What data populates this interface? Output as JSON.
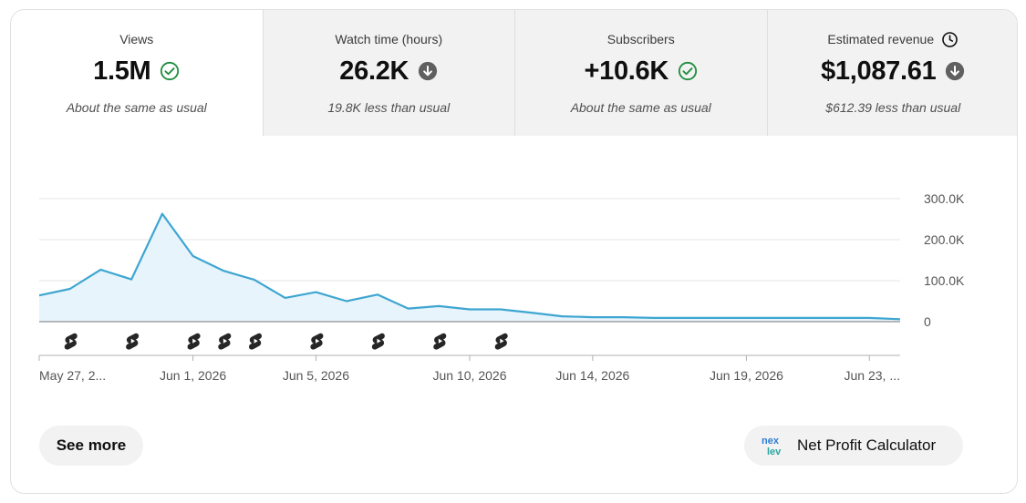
{
  "metrics": [
    {
      "label": "Views",
      "value": "1.5M",
      "status": "check-circle-icon",
      "sub": "About the same as usual",
      "active": true
    },
    {
      "label": "Watch time (hours)",
      "value": "26.2K",
      "status": "arrow-down-circle-icon",
      "sub": "19.8K less than usual",
      "active": false
    },
    {
      "label": "Subscribers",
      "value": "+10.6K",
      "status": "check-circle-icon",
      "sub": "About the same as usual",
      "active": false
    },
    {
      "label": "Estimated revenue",
      "value": "$1,087.61",
      "status": "arrow-down-circle-icon",
      "sub": "$612.39 less than usual",
      "active": false,
      "label_icon": "clock-icon"
    }
  ],
  "colors": {
    "line": "#3ea6d1",
    "fill": "#e8f4fb",
    "check": "#1e8e3e",
    "down": "#606060"
  },
  "chart_data": {
    "type": "area",
    "x": [
      "May 27",
      "May 28",
      "May 29",
      "May 30",
      "May 31",
      "Jun 1",
      "Jun 2",
      "Jun 3",
      "Jun 4",
      "Jun 5",
      "Jun 6",
      "Jun 7",
      "Jun 8",
      "Jun 9",
      "Jun 10",
      "Jun 11",
      "Jun 12",
      "Jun 13",
      "Jun 14",
      "Jun 15",
      "Jun 16",
      "Jun 17",
      "Jun 18",
      "Jun 19",
      "Jun 20",
      "Jun 21",
      "Jun 22",
      "Jun 23",
      "Jun 24"
    ],
    "series": [
      {
        "values": [
          64000,
          80000,
          127000,
          103000,
          263000,
          160000,
          124000,
          102000,
          58000,
          72000,
          50000,
          66000,
          32000,
          38000,
          30000,
          30000,
          22000,
          13000,
          11000,
          11000,
          9000,
          9000,
          9000,
          9000,
          9000,
          9000,
          9000,
          9000,
          6000
        ]
      }
    ],
    "ylim": [
      0,
      300000
    ],
    "yticks": [
      0,
      100000,
      200000,
      300000
    ],
    "ytick_labels": [
      "0",
      "100.0K",
      "200.0K",
      "300.0K"
    ],
    "xtick_labels": [
      {
        "x": "May 27",
        "label": "May 27, 2..."
      },
      {
        "x": "Jun 1",
        "label": "Jun 1, 2026"
      },
      {
        "x": "Jun 5",
        "label": "Jun 5, 2026"
      },
      {
        "x": "Jun 10",
        "label": "Jun 10, 2026"
      },
      {
        "x": "Jun 14",
        "label": "Jun 14, 2026"
      },
      {
        "x": "Jun 19",
        "label": "Jun 19, 2026"
      },
      {
        "x": "Jun 23",
        "label": "Jun 23, ..."
      }
    ],
    "shorts_markers": [
      "May 28",
      "May 30",
      "Jun 1",
      "Jun 2",
      "Jun 3",
      "Jun 5",
      "Jun 7",
      "Jun 9",
      "Jun 11"
    ],
    "grid": true
  },
  "buttons": {
    "see_more": "See more",
    "net_profit": "Net Profit Calculator"
  }
}
